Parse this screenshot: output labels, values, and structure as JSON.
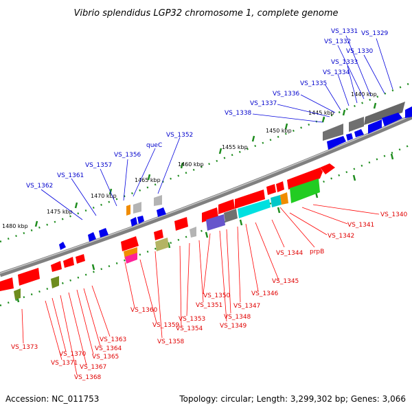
{
  "title": "Vibrio splendidus LGP32 chromosome 1, complete genome",
  "footer": {
    "accession": "Accession: NC_011753",
    "summary": "Topology: circular; Length: 3,299,302 bp; Genes: 3,066"
  },
  "colors": {
    "backbone": "#808080",
    "ruler_dots": "#1e8c1e",
    "plus_strand_label": "#0000cc",
    "minus_strand_label": "#e00000"
  },
  "kbp_ticks": [
    "1440 kbp",
    "1445 kbp",
    "1450 kbp",
    "1455 kbp",
    "1460 kbp",
    "1465 kbp",
    "1470 kbp",
    "1475 kbp",
    "1480 kbp"
  ],
  "labels_top": [
    "VS_1329",
    "VS_1330",
    "VS_1331",
    "VS_1332",
    "VS_1333",
    "VS_1334",
    "VS_1335",
    "VS_1336",
    "VS_1337",
    "VS_1338",
    "VS_1352",
    "queC",
    "VS_1356",
    "VS_1357",
    "VS_1361",
    "VS_1362"
  ],
  "labels_bottom": [
    "VS_1340",
    "VS_1341",
    "VS_1342",
    "prpB",
    "VS_1344",
    "VS_1345",
    "VS_1346",
    "VS_1347",
    "VS_1348",
    "VS_1349",
    "VS_1350",
    "VS_1351",
    "VS_1353",
    "VS_1354",
    "VS_1358",
    "VS_1359",
    "VS_1360",
    "VS_1363",
    "VS_1364",
    "VS_1365",
    "VS_1367",
    "VS_1368",
    "VS_1370",
    "VS_1371",
    "VS_1373"
  ]
}
